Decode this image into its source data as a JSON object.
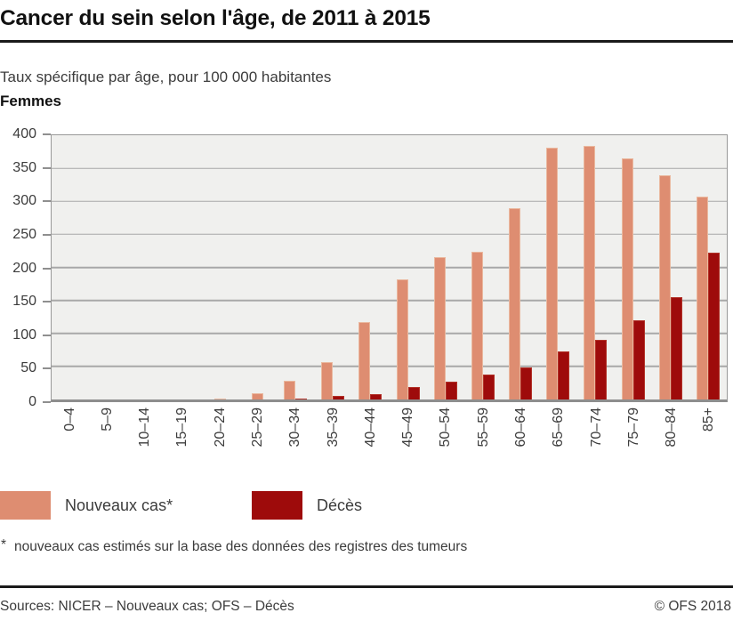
{
  "header": {
    "title": "Cancer du sein selon l'âge, de 2011 à 2015",
    "subtitle": "Taux spécifique par âge, pour 100 000 habitantes",
    "group_label": "Femmes"
  },
  "chart_data": {
    "type": "bar",
    "title": "Cancer du sein selon l'âge, de 2011 à 2015",
    "subtitle": "Taux spécifique par âge, pour 100 000 habitantes",
    "population": "Femmes",
    "categories": [
      "0–4",
      "5–9",
      "10–14",
      "15–19",
      "20–24",
      "25–29",
      "30–34",
      "35–39",
      "40–44",
      "45–49",
      "50–54",
      "55–59",
      "60–64",
      "65–69",
      "70–74",
      "75–79",
      "80–84",
      "85+"
    ],
    "series": [
      {
        "name": "Nouveaux cas*",
        "color": "#de8d71",
        "border_color": "#eab89e",
        "values": [
          0,
          0,
          0,
          0,
          2,
          10,
          28,
          57,
          117,
          182,
          216,
          224,
          289,
          381,
          384,
          365,
          339,
          307
        ]
      },
      {
        "name": "Décès",
        "color": "#9e0b0b",
        "border_color": "#b23228",
        "values": [
          0,
          0,
          0,
          0,
          0,
          0,
          2,
          5,
          8,
          19,
          27,
          38,
          49,
          73,
          90,
          120,
          155,
          222
        ]
      }
    ],
    "xlabel": "",
    "ylabel": "",
    "ylim": [
      0,
      400
    ],
    "yticks": [
      0,
      50,
      100,
      150,
      200,
      250,
      300,
      350,
      400
    ],
    "grid": true,
    "legend_position": "bottom",
    "plot_bg": "#f0f0ee",
    "grid_color": "#a8a8a8"
  },
  "footnote": {
    "marker": "*",
    "text": "nouveaux cas estimés sur la base des données des registres des tumeurs"
  },
  "footer": {
    "sources": "Sources: NICER – Nouveaux cas; OFS – Décès",
    "copyright": "© OFS 2018"
  }
}
